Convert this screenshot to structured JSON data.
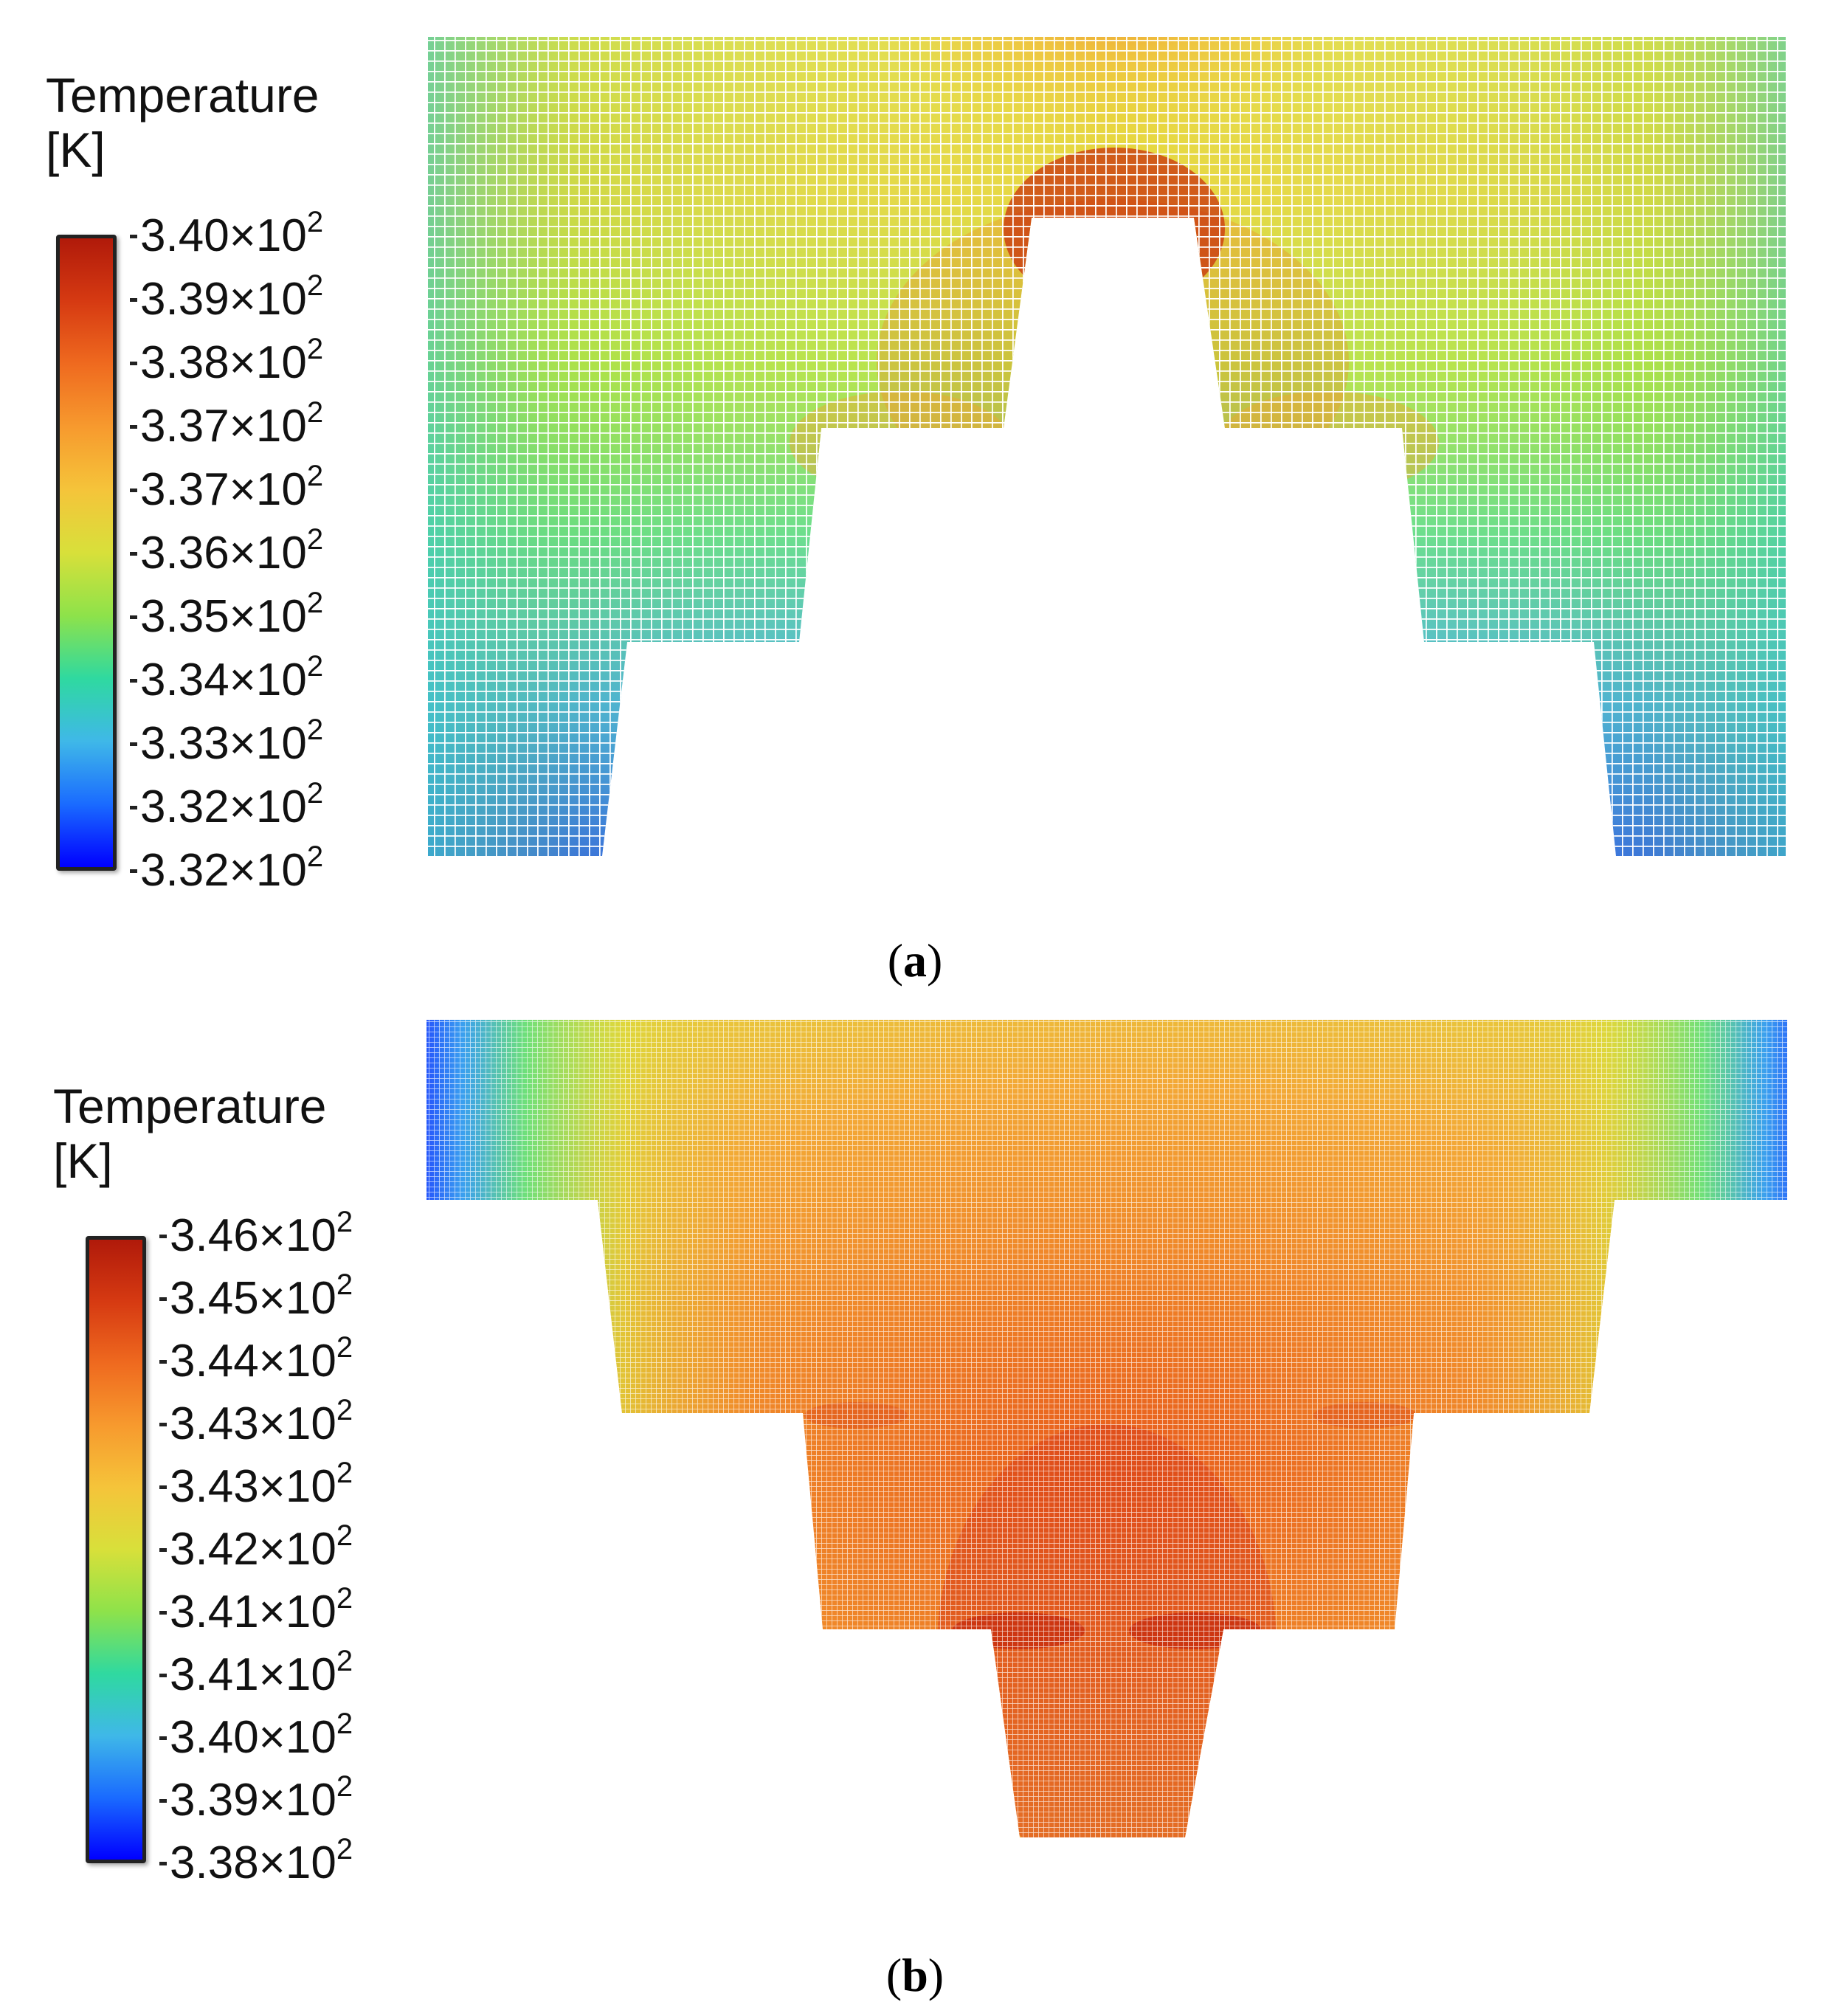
{
  "panels": [
    {
      "id": "a",
      "label_letter": "a",
      "legend": {
        "title_line1": "Temperature",
        "title_line2": "[K]",
        "ticks": [
          {
            "mantissa": "3.40",
            "base": "×10",
            "exponent": "2"
          },
          {
            "mantissa": "3.39",
            "base": "×10",
            "exponent": "2"
          },
          {
            "mantissa": "3.38",
            "base": "×10",
            "exponent": "2"
          },
          {
            "mantissa": "3.37",
            "base": "×10",
            "exponent": "2"
          },
          {
            "mantissa": "3.37",
            "base": "×10",
            "exponent": "2"
          },
          {
            "mantissa": "3.36",
            "base": "×10",
            "exponent": "2"
          },
          {
            "mantissa": "3.35",
            "base": "×10",
            "exponent": "2"
          },
          {
            "mantissa": "3.34",
            "base": "×10",
            "exponent": "2"
          },
          {
            "mantissa": "3.33",
            "base": "×10",
            "exponent": "2"
          },
          {
            "mantissa": "3.32",
            "base": "×10",
            "exponent": "2"
          },
          {
            "mantissa": "3.32",
            "base": "×10",
            "exponent": "2"
          }
        ]
      }
    },
    {
      "id": "b",
      "label_letter": "b",
      "legend": {
        "title_line1": "Temperature",
        "title_line2": "[K]",
        "ticks": [
          {
            "mantissa": "3.46",
            "base": "×10",
            "exponent": "2"
          },
          {
            "mantissa": "3.45",
            "base": "×10",
            "exponent": "2"
          },
          {
            "mantissa": "3.44",
            "base": "×10",
            "exponent": "2"
          },
          {
            "mantissa": "3.43",
            "base": "×10",
            "exponent": "2"
          },
          {
            "mantissa": "3.43",
            "base": "×10",
            "exponent": "2"
          },
          {
            "mantissa": "3.42",
            "base": "×10",
            "exponent": "2"
          },
          {
            "mantissa": "3.41",
            "base": "×10",
            "exponent": "2"
          },
          {
            "mantissa": "3.41",
            "base": "×10",
            "exponent": "2"
          },
          {
            "mantissa": "3.40",
            "base": "×10",
            "exponent": "2"
          },
          {
            "mantissa": "3.39",
            "base": "×10",
            "exponent": "2"
          },
          {
            "mantissa": "3.38",
            "base": "×10",
            "exponent": "2"
          }
        ]
      }
    }
  ],
  "colormap": [
    "#0000ff",
    "#1a6bff",
    "#3fb8e8",
    "#2fd9a0",
    "#8ee24a",
    "#d8e03a",
    "#f5c43a",
    "#f79a2e",
    "#ef6a1f",
    "#d63a12",
    "#b01a0a"
  ]
}
